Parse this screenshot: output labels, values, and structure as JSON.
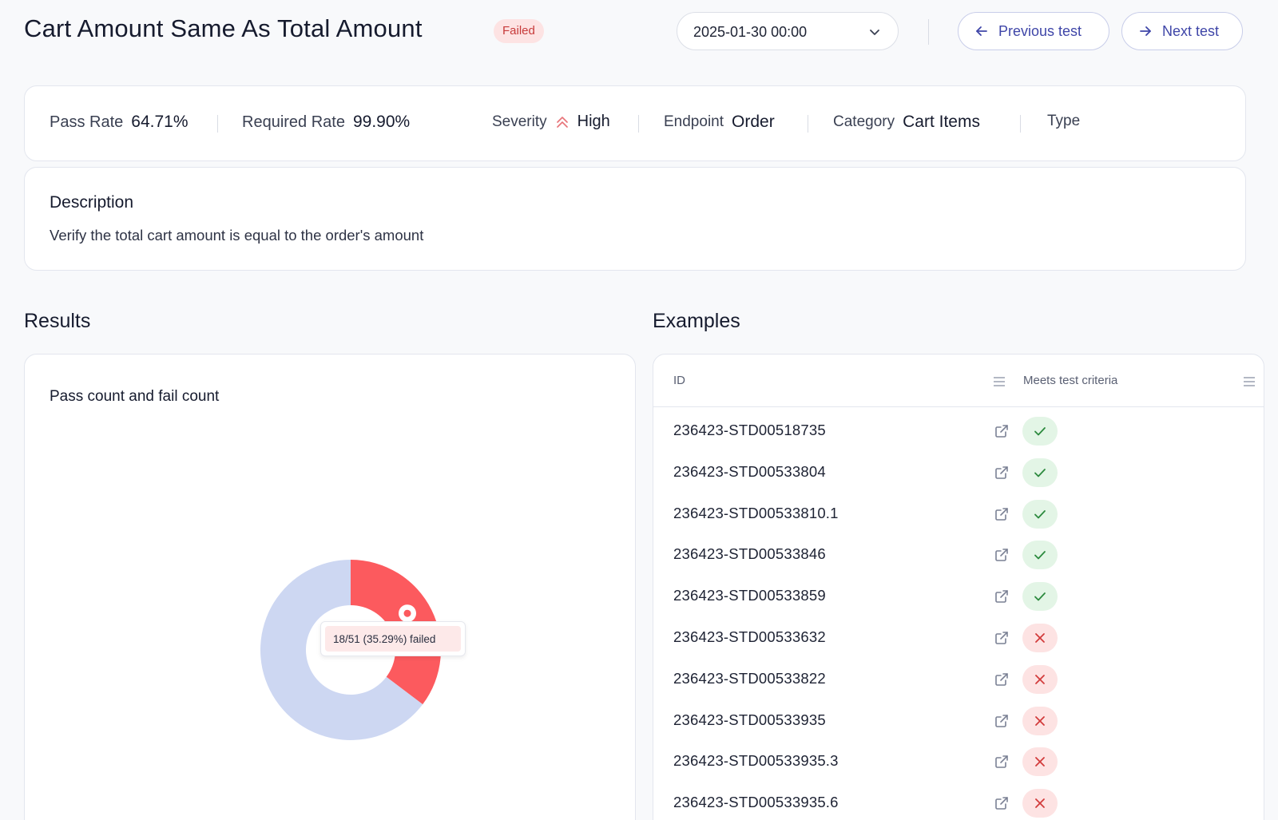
{
  "header": {
    "title": "Cart Amount Same As Total Amount",
    "status": "Failed",
    "date": "2025-01-30 00:00",
    "prev_label": "Previous test",
    "next_label": "Next test"
  },
  "metrics": {
    "pass_rate_label": "Pass Rate",
    "pass_rate_value": "64.71%",
    "required_rate_label": "Required Rate",
    "required_rate_value": "99.90%",
    "severity_label": "Severity",
    "severity_value": "High",
    "endpoint_label": "Endpoint",
    "endpoint_value": "Order",
    "category_label": "Category",
    "category_value": "Cart Items",
    "type_label": "Type"
  },
  "description": {
    "title": "Description",
    "text": "Verify the total cart amount is equal to the order's amount"
  },
  "results": {
    "section_title": "Results",
    "chart_title": "Pass count and fail count",
    "tooltip": "18/51 (35.29%) failed"
  },
  "chart_data": {
    "type": "pie",
    "title": "Pass count and fail count",
    "total": 51,
    "slices": [
      {
        "value": 18,
        "color": "#fc5a5e"
      },
      {
        "value": 33,
        "color": "#cdd7f2"
      }
    ],
    "tooltip": "18/51 (35.29%) failed"
  },
  "examples": {
    "section_title": "Examples",
    "col_id": "ID",
    "col_criteria": "Meets test criteria",
    "rows": [
      {
        "id": "236423-STD00518735",
        "pass": true
      },
      {
        "id": "236423-STD00533804",
        "pass": true
      },
      {
        "id": "236423-STD00533810.1",
        "pass": true
      },
      {
        "id": "236423-STD00533846",
        "pass": true
      },
      {
        "id": "236423-STD00533859",
        "pass": true
      },
      {
        "id": "236423-STD00533632",
        "pass": false
      },
      {
        "id": "236423-STD00533822",
        "pass": false
      },
      {
        "id": "236423-STD00533935",
        "pass": false
      },
      {
        "id": "236423-STD00533935.3",
        "pass": false
      },
      {
        "id": "236423-STD00533935.6",
        "pass": false
      }
    ]
  },
  "colors": {
    "accent": "#3f46a8",
    "fail": "#fc5a5e",
    "pass_bg": "#e3f5e6",
    "fail_bg": "#fde3e3",
    "pass_slice": "#cdd7f2"
  },
  "icons": {
    "chevron": "chevron-down-icon",
    "prev": "arrow-left-icon",
    "next": "arrow-right-icon",
    "severity": "double-chevron-up-icon",
    "link": "external-link-icon",
    "menu": "column-menu-icon",
    "pass": "check-icon",
    "fail": "x-icon"
  }
}
